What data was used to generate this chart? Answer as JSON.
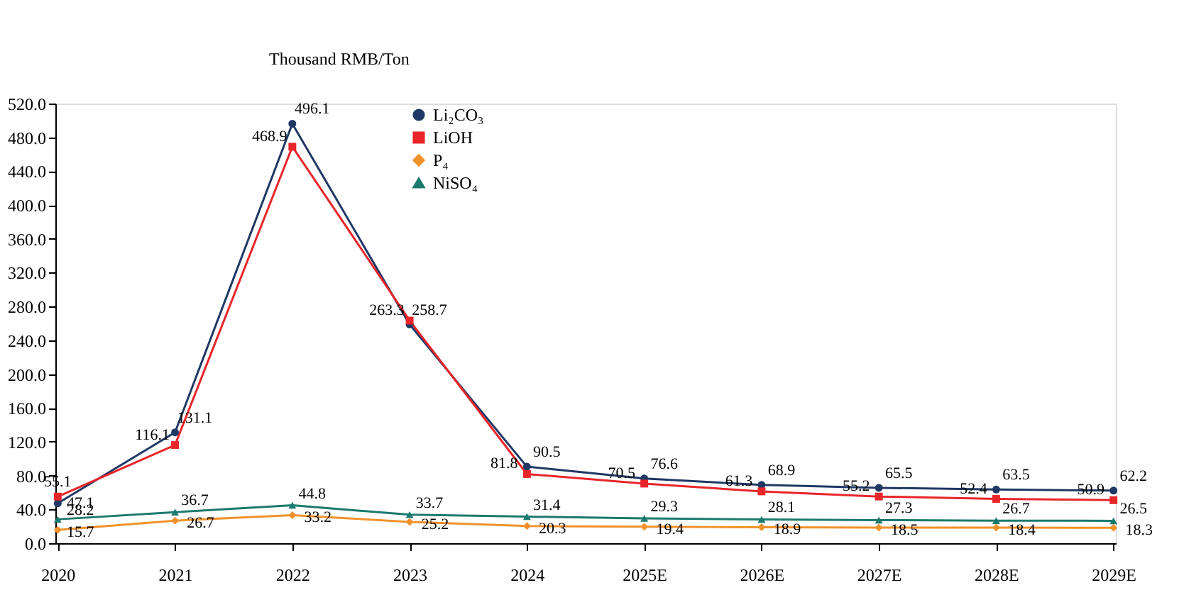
{
  "chart_data": {
    "type": "line",
    "ylabel": "Thousand RMB/Ton",
    "categories": [
      "2020",
      "2021",
      "2022",
      "2023",
      "2024",
      "2025E",
      "2026E",
      "2027E",
      "2028E",
      "2029E"
    ],
    "series": [
      {
        "name": "Li₂CO₃",
        "color": "#1f3864",
        "marker": "circle",
        "values": [
          47.1,
          131.1,
          496.1,
          258.7,
          90.5,
          76.6,
          68.9,
          65.5,
          63.5,
          62.2
        ]
      },
      {
        "name": "LiOH",
        "color": "#e8262a",
        "marker": "square",
        "values": [
          55.1,
          116.1,
          468.9,
          263.3,
          81.8,
          70.5,
          61.3,
          55.2,
          52.4,
          50.9
        ]
      },
      {
        "name": "P₄",
        "color": "#f0922b",
        "marker": "diamond",
        "values": [
          15.7,
          26.7,
          33.2,
          25.2,
          20.3,
          19.4,
          18.9,
          18.5,
          18.4,
          18.3
        ]
      },
      {
        "name": "NiSO₄",
        "color": "#1b7a6e",
        "marker": "triangle",
        "values": [
          28.2,
          36.7,
          44.8,
          33.7,
          31.4,
          29.3,
          28.1,
          27.3,
          26.7,
          26.5
        ]
      }
    ],
    "ylim": [
      0,
      520
    ],
    "yticks": [
      {
        "value": 0,
        "label": "0.0"
      },
      {
        "value": 40,
        "label": "40.0"
      },
      {
        "value": 80,
        "label": "80.0"
      },
      {
        "value": 120,
        "label": "120.0"
      },
      {
        "value": 160,
        "label": "160.0"
      },
      {
        "value": 200,
        "label": "200.0"
      },
      {
        "value": 240,
        "label": "240.0"
      },
      {
        "value": 280,
        "label": "280.0"
      },
      {
        "value": 320,
        "label": "320.0"
      },
      {
        "value": 360,
        "label": "360.0"
      },
      {
        "value": 400,
        "label": "400.0"
      },
      {
        "value": 440,
        "label": "440.0"
      },
      {
        "value": 480,
        "label": "480.0"
      },
      {
        "value": 520,
        "label": "520.0"
      }
    ],
    "data_labels": true,
    "legend": "top left",
    "grid": false,
    "line_style": "solid"
  }
}
